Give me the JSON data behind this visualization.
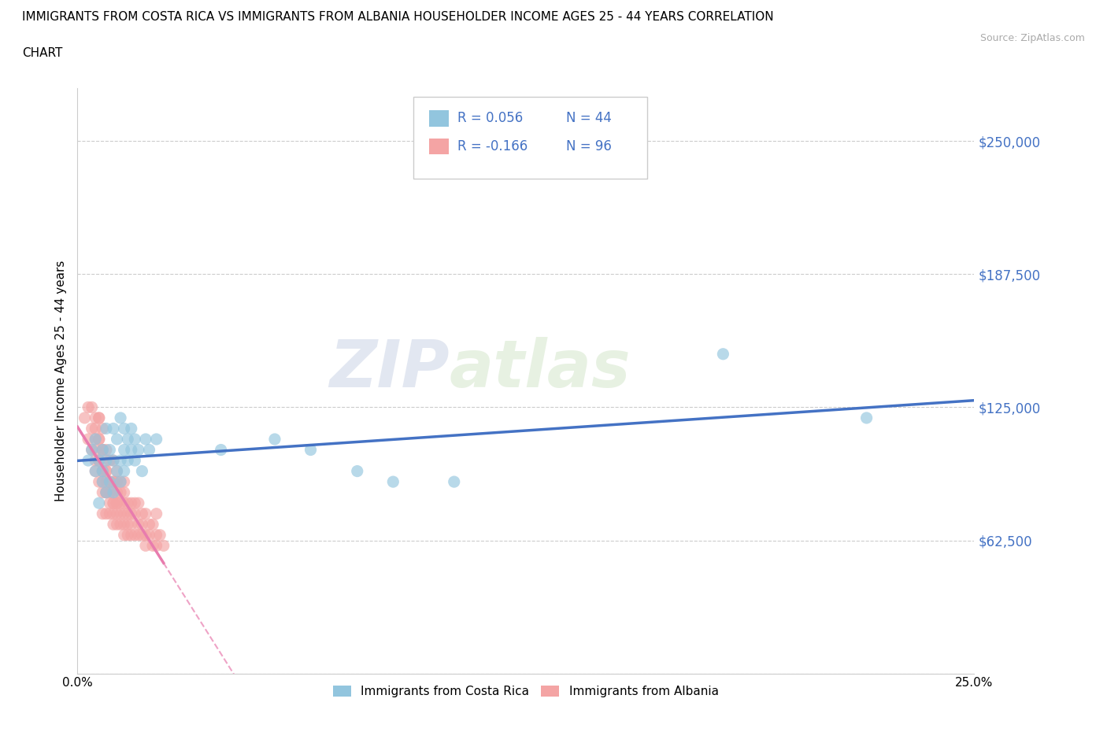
{
  "title_line1": "IMMIGRANTS FROM COSTA RICA VS IMMIGRANTS FROM ALBANIA HOUSEHOLDER INCOME AGES 25 - 44 YEARS CORRELATION",
  "title_line2": "CHART",
  "source_text": "Source: ZipAtlas.com",
  "ylabel": "Householder Income Ages 25 - 44 years",
  "xlim": [
    0.0,
    0.25
  ],
  "ylim": [
    0,
    275000
  ],
  "yticks": [
    0,
    62500,
    125000,
    187500,
    250000
  ],
  "ytick_labels": [
    "",
    "$62,500",
    "$125,000",
    "$187,500",
    "$250,000"
  ],
  "xticks": [
    0.0,
    0.05,
    0.1,
    0.15,
    0.2,
    0.25
  ],
  "xtick_labels": [
    "0.0%",
    "",
    "",
    "",
    "",
    "25.0%"
  ],
  "costa_rica_color": "#92c5de",
  "albania_color": "#f4a4a4",
  "costa_rica_R": 0.056,
  "costa_rica_N": 44,
  "albania_R": -0.166,
  "albania_N": 96,
  "legend_label_1": "Immigrants from Costa Rica",
  "legend_label_2": "Immigrants from Albania",
  "watermark_zip": "ZIP",
  "watermark_atlas": "atlas",
  "background_color": "#ffffff",
  "grid_color": "#cccccc",
  "axis_label_color": "#4472c4",
  "trend_line_color_1": "#4472c4",
  "trend_line_color_2": "#e87cae",
  "costa_rica_x": [
    0.003,
    0.004,
    0.005,
    0.005,
    0.006,
    0.006,
    0.007,
    0.007,
    0.007,
    0.008,
    0.008,
    0.008,
    0.009,
    0.009,
    0.01,
    0.01,
    0.01,
    0.011,
    0.011,
    0.012,
    0.012,
    0.012,
    0.013,
    0.013,
    0.013,
    0.014,
    0.014,
    0.015,
    0.015,
    0.016,
    0.016,
    0.017,
    0.018,
    0.019,
    0.02,
    0.022,
    0.04,
    0.055,
    0.065,
    0.078,
    0.088,
    0.105,
    0.18,
    0.22
  ],
  "costa_rica_y": [
    100000,
    105000,
    95000,
    110000,
    80000,
    100000,
    90000,
    105000,
    95000,
    85000,
    100000,
    115000,
    90000,
    105000,
    85000,
    100000,
    115000,
    95000,
    110000,
    90000,
    100000,
    120000,
    95000,
    105000,
    115000,
    100000,
    110000,
    105000,
    115000,
    100000,
    110000,
    105000,
    95000,
    110000,
    105000,
    110000,
    105000,
    110000,
    105000,
    95000,
    90000,
    90000,
    150000,
    120000
  ],
  "albania_x": [
    0.002,
    0.003,
    0.003,
    0.004,
    0.004,
    0.004,
    0.005,
    0.005,
    0.005,
    0.005,
    0.005,
    0.005,
    0.006,
    0.006,
    0.006,
    0.006,
    0.006,
    0.006,
    0.006,
    0.007,
    0.007,
    0.007,
    0.007,
    0.007,
    0.007,
    0.007,
    0.007,
    0.008,
    0.008,
    0.008,
    0.008,
    0.008,
    0.008,
    0.008,
    0.008,
    0.009,
    0.009,
    0.009,
    0.009,
    0.009,
    0.009,
    0.01,
    0.01,
    0.01,
    0.01,
    0.01,
    0.01,
    0.01,
    0.01,
    0.011,
    0.011,
    0.011,
    0.011,
    0.011,
    0.011,
    0.011,
    0.012,
    0.012,
    0.012,
    0.012,
    0.012,
    0.013,
    0.013,
    0.013,
    0.013,
    0.013,
    0.013,
    0.014,
    0.014,
    0.014,
    0.014,
    0.015,
    0.015,
    0.015,
    0.015,
    0.016,
    0.016,
    0.016,
    0.017,
    0.017,
    0.017,
    0.018,
    0.018,
    0.018,
    0.019,
    0.019,
    0.019,
    0.02,
    0.02,
    0.021,
    0.021,
    0.022,
    0.022,
    0.022,
    0.023,
    0.024
  ],
  "albania_y": [
    120000,
    110000,
    125000,
    105000,
    115000,
    125000,
    100000,
    110000,
    120000,
    95000,
    105000,
    115000,
    100000,
    110000,
    120000,
    90000,
    100000,
    110000,
    120000,
    95000,
    105000,
    115000,
    85000,
    95000,
    105000,
    75000,
    90000,
    95000,
    105000,
    85000,
    95000,
    75000,
    85000,
    90000,
    100000,
    90000,
    100000,
    80000,
    90000,
    75000,
    85000,
    90000,
    100000,
    80000,
    85000,
    75000,
    90000,
    80000,
    70000,
    85000,
    95000,
    75000,
    80000,
    90000,
    70000,
    80000,
    85000,
    75000,
    90000,
    70000,
    80000,
    85000,
    75000,
    90000,
    70000,
    80000,
    65000,
    80000,
    75000,
    70000,
    65000,
    80000,
    70000,
    65000,
    75000,
    75000,
    65000,
    80000,
    70000,
    65000,
    80000,
    70000,
    65000,
    75000,
    65000,
    75000,
    60000,
    70000,
    65000,
    70000,
    60000,
    65000,
    75000,
    60000,
    65000,
    60000
  ]
}
